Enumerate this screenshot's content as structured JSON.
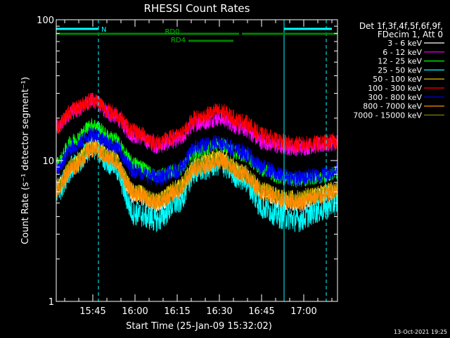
{
  "chart_data": {
    "type": "line",
    "title": "RHESSI Count Rates",
    "ylabel": "Count Rate (s⁻¹ detector segment⁻¹)",
    "xlabel": "Start Time (25-Jan-09 15:32:02)",
    "yscale": "log",
    "ylim": [
      1,
      100
    ],
    "xlim_minutes_after_1530": [
      2,
      102
    ],
    "y_ticks": [
      {
        "value": 1,
        "label": "1"
      },
      {
        "value": 10,
        "label": "10"
      },
      {
        "value": 100,
        "label": "100"
      }
    ],
    "x_ticks": [
      {
        "minutes": 15,
        "label": "15:45"
      },
      {
        "minutes": 30,
        "label": "16:00"
      },
      {
        "minutes": 45,
        "label": "16:15"
      },
      {
        "minutes": 60,
        "label": "16:30"
      },
      {
        "minutes": 75,
        "label": "16:45"
      },
      {
        "minutes": 90,
        "label": "17:00"
      }
    ],
    "legend_header": [
      "Det 1f,3f,4f,5f,6f,9f,",
      "FDecim 1, Att 0"
    ],
    "legend_placement": "right",
    "series": [
      {
        "name": "3 - 6 keV",
        "color": "#ffffff",
        "x": [
          2,
          8,
          15,
          22,
          30,
          38,
          45,
          52,
          60,
          68,
          76,
          82,
          88,
          95,
          102
        ],
        "y": [
          6.5,
          9.2,
          12.3,
          10.5,
          5.6,
          4.8,
          6.0,
          9.0,
          10.3,
          8.0,
          5.8,
          5.0,
          4.9,
          5.6,
          6.0
        ]
      },
      {
        "name": "6 - 12 keV",
        "color": "#ff00ff",
        "x": [
          2,
          8,
          15,
          22,
          30,
          38,
          45,
          52,
          60,
          68,
          76,
          82,
          88,
          95,
          102
        ],
        "y": [
          17.0,
          22.5,
          26.5,
          21.0,
          15.0,
          12.8,
          14.0,
          18.5,
          20.0,
          17.0,
          13.5,
          12.5,
          12.3,
          12.8,
          13.5
        ]
      },
      {
        "name": "12 - 25 keV",
        "color": "#00ff00",
        "x": [
          2,
          8,
          15,
          22,
          30,
          38,
          45,
          52,
          60,
          68,
          76,
          82,
          88,
          95,
          102
        ],
        "y": [
          9.5,
          14.0,
          18.0,
          14.5,
          9.5,
          7.8,
          8.5,
          11.5,
          13.0,
          11.0,
          8.5,
          7.5,
          7.2,
          7.6,
          8.2
        ]
      },
      {
        "name": "25 - 50 keV",
        "color": "#00ffff",
        "x": [
          2,
          8,
          15,
          22,
          30,
          38,
          45,
          52,
          60,
          68,
          76,
          82,
          88,
          95,
          102
        ],
        "y": [
          6.0,
          9.0,
          12.5,
          9.5,
          4.2,
          3.8,
          5.0,
          8.5,
          9.5,
          7.5,
          4.6,
          4.0,
          3.8,
          4.4,
          5.0
        ]
      },
      {
        "name": "50 - 100 keV",
        "color": "#ffd700",
        "x": [
          2,
          8,
          15,
          22,
          30,
          38,
          45,
          52,
          60,
          68,
          76,
          82,
          88,
          95,
          102
        ],
        "y": [
          6.3,
          9.4,
          12.8,
          10.6,
          6.0,
          5.2,
          6.4,
          9.4,
          10.6,
          8.4,
          6.2,
          5.5,
          5.4,
          5.9,
          6.3
        ]
      },
      {
        "name": "100 - 300 keV",
        "color": "#ff0000",
        "x": [
          2,
          8,
          15,
          22,
          30,
          38,
          45,
          52,
          60,
          68,
          76,
          82,
          88,
          95,
          102
        ],
        "y": [
          17.5,
          23.0,
          27.0,
          22.0,
          16.0,
          13.5,
          14.8,
          20.0,
          22.5,
          19.0,
          15.0,
          13.5,
          13.0,
          13.2,
          13.8
        ]
      },
      {
        "name": "300 - 800 keV",
        "color": "#0000ff",
        "x": [
          2,
          8,
          15,
          22,
          30,
          38,
          45,
          52,
          60,
          68,
          76,
          82,
          88,
          95,
          102
        ],
        "y": [
          8.5,
          12.5,
          15.5,
          13.0,
          8.5,
          7.5,
          8.5,
          12.5,
          13.5,
          11.5,
          8.8,
          7.8,
          7.5,
          7.8,
          8.5
        ]
      },
      {
        "name": "800 - 7000 keV",
        "color": "#ff8c00",
        "x": [
          2,
          8,
          15,
          22,
          30,
          38,
          45,
          52,
          60,
          68,
          76,
          82,
          88,
          95,
          102
        ],
        "y": [
          6.2,
          9.0,
          12.0,
          10.0,
          5.8,
          5.0,
          6.0,
          8.8,
          10.0,
          8.0,
          5.9,
          5.2,
          5.1,
          5.5,
          6.0
        ]
      },
      {
        "name": "7000 - 15000 keV",
        "color": "#808000",
        "x": [
          2,
          8,
          15,
          22,
          30,
          38,
          45,
          52,
          60,
          68,
          76,
          82,
          88,
          95,
          102
        ],
        "y": [
          6.4,
          9.3,
          12.5,
          10.4,
          6.0,
          5.1,
          6.2,
          9.1,
          10.4,
          8.3,
          6.1,
          5.4,
          5.3,
          5.7,
          6.2
        ]
      }
    ],
    "attenuator_bars": [
      {
        "label": "N",
        "color": "#00ffff",
        "start_min": 2,
        "end_min": 17,
        "level": "top"
      },
      {
        "label": "",
        "color": "#00ffff",
        "start_min": 83,
        "end_min": 100,
        "level": "top"
      },
      {
        "label": "RD0",
        "color": "#008000",
        "start_min": 2,
        "end_min": 67,
        "level": "middle"
      },
      {
        "label": "",
        "color": "#008000",
        "start_min": 68,
        "end_min": 102,
        "level": "middle"
      },
      {
        "label": "RD4",
        "color": "#008000",
        "start_min": 49,
        "end_min": 65,
        "level": "low"
      }
    ],
    "vertical_markers": [
      {
        "minutes": 2,
        "color": "#00ffff",
        "style": "solid"
      },
      {
        "minutes": 17,
        "color": "#00ffff",
        "style": "dashed"
      },
      {
        "minutes": 83,
        "color": "#00ffff",
        "style": "solid"
      },
      {
        "minutes": 98,
        "color": "#00ffff",
        "style": "dashed"
      }
    ],
    "grid": false
  },
  "footer": {
    "date_stamp": "13-Oct-2021 19:25"
  }
}
